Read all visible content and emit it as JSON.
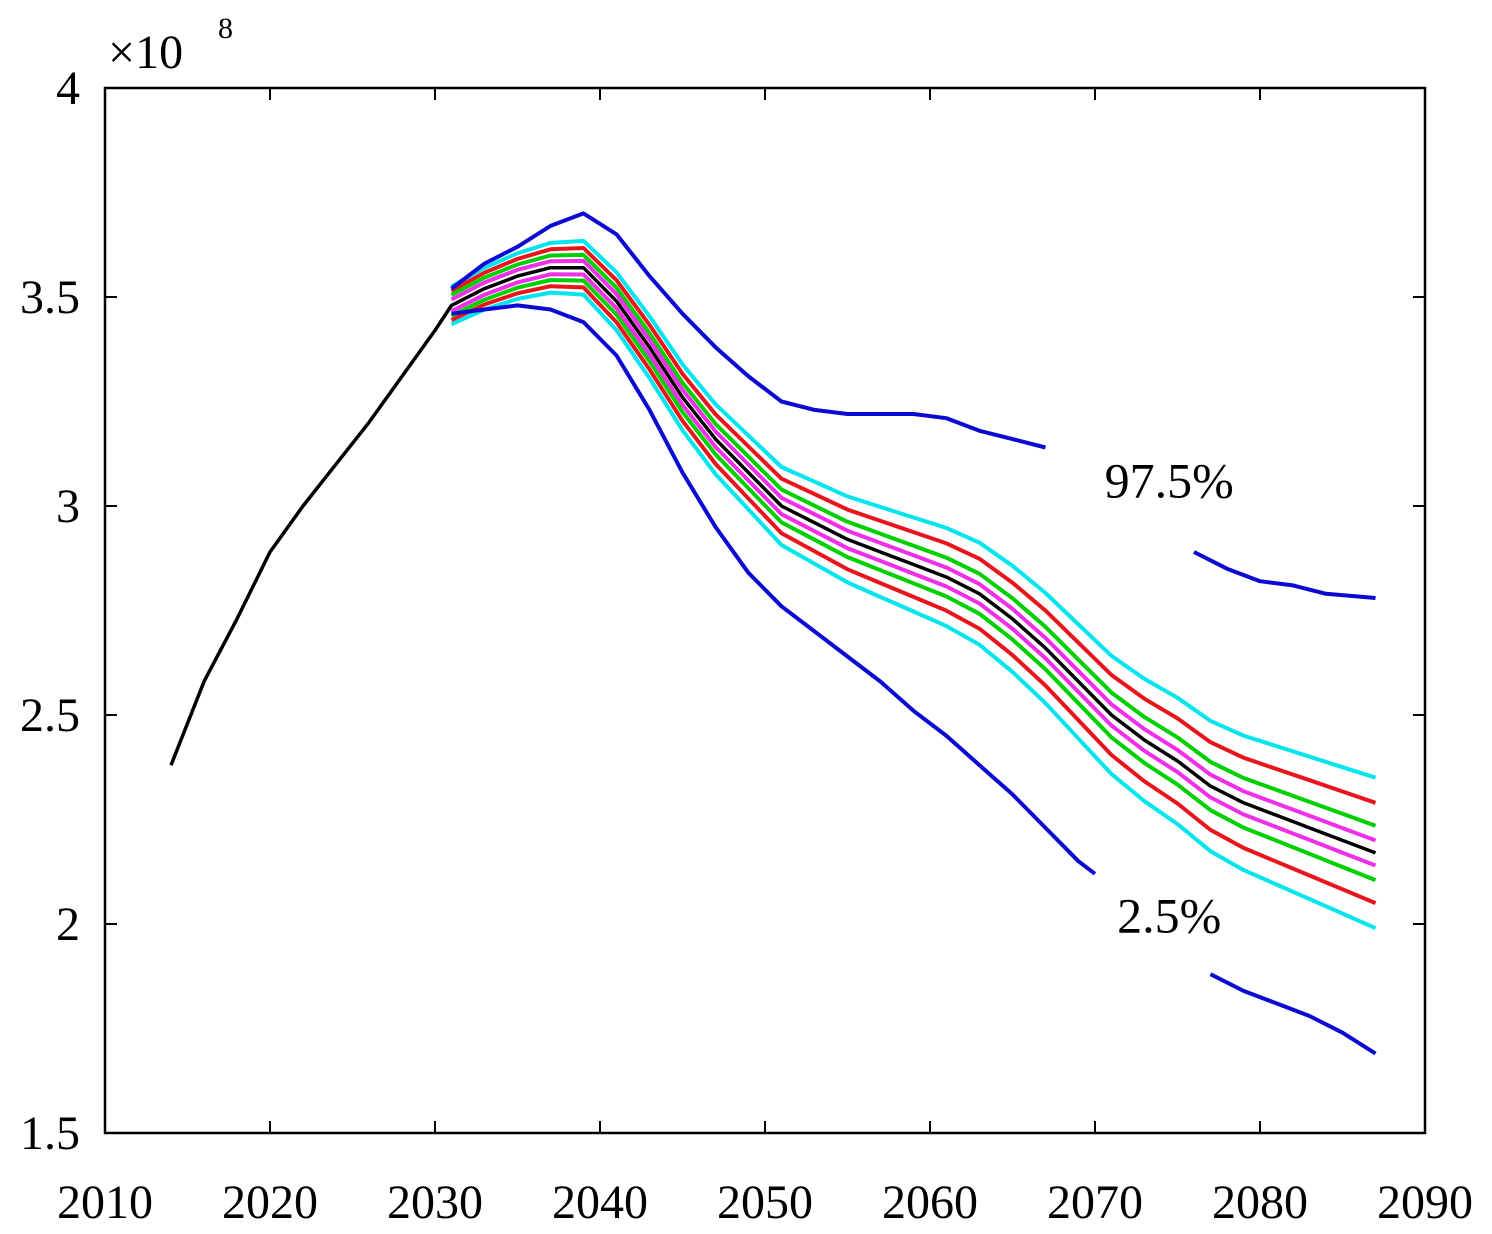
{
  "chart_data": {
    "type": "line",
    "title": "",
    "xlabel": "",
    "ylabel": "",
    "y_multiplier": {
      "base": "×10",
      "exponent": "8"
    },
    "xlim": [
      2010,
      2090
    ],
    "ylim": [
      1.5,
      4
    ],
    "x_ticks": [
      2010,
      2020,
      2030,
      2040,
      2050,
      2060,
      2070,
      2080,
      2090
    ],
    "x_tick_labels": [
      "2010",
      "2020",
      "2030",
      "2040",
      "2050",
      "2060",
      "2070",
      "2080",
      "2090"
    ],
    "y_ticks": [
      1.5,
      2,
      2.5,
      3,
      3.5,
      4
    ],
    "y_tick_labels": [
      "1.5",
      "2",
      "2.5",
      "3",
      "3.5",
      "4"
    ],
    "grid": false,
    "annotations": [
      {
        "text": "97.5%",
        "x": 2074.5,
        "y": 3.02
      },
      {
        "text": "2.5%",
        "x": 2074.5,
        "y": 1.98
      }
    ],
    "colors": {
      "outer": "#0a0ad2",
      "cyan": "#00e5ee",
      "red": "#e8161c",
      "green": "#00d000",
      "magenta": "#f030e8",
      "median": "#000000"
    },
    "series": [
      {
        "name": "97.5% upper",
        "color_key": "outer",
        "segments": [
          {
            "x": [
              2031,
              2033,
              2035,
              2037,
              2039,
              2041,
              2043,
              2045,
              2047,
              2049,
              2051,
              2053,
              2055,
              2057,
              2059,
              2061,
              2063,
              2065,
              2067
            ],
            "y": [
              3.52,
              3.58,
              3.62,
              3.67,
              3.7,
              3.65,
              3.55,
              3.46,
              3.38,
              3.31,
              3.25,
              3.23,
              3.22,
              3.22,
              3.22,
              3.21,
              3.18,
              3.16,
              3.14
            ]
          },
          {
            "x": [
              2076,
              2078,
              2080,
              2082,
              2084,
              2087
            ],
            "y": [
              2.89,
              2.85,
              2.82,
              2.81,
              2.79,
              2.78
            ]
          }
        ]
      },
      {
        "name": "2.5% lower",
        "color_key": "outer",
        "segments": [
          {
            "x": [
              2031,
              2033,
              2035,
              2037,
              2039,
              2041,
              2043,
              2045,
              2047,
              2049,
              2051,
              2053,
              2055,
              2057,
              2059,
              2061,
              2063,
              2065,
              2067,
              2069,
              2070
            ],
            "y": [
              3.46,
              3.47,
              3.48,
              3.47,
              3.44,
              3.36,
              3.23,
              3.08,
              2.95,
              2.84,
              2.76,
              2.7,
              2.64,
              2.58,
              2.51,
              2.45,
              2.38,
              2.31,
              2.23,
              2.15,
              2.12
            ]
          },
          {
            "x": [
              2077,
              2079,
              2081,
              2083,
              2085,
              2087
            ],
            "y": [
              1.88,
              1.84,
              1.81,
              1.78,
              1.74,
              1.69
            ]
          }
        ]
      },
      {
        "name": "median",
        "color_key": "median",
        "x": [
          2014,
          2016,
          2018,
          2020,
          2022,
          2024,
          2026,
          2028,
          2030,
          2031,
          2033,
          2035,
          2037,
          2039,
          2041,
          2043,
          2045,
          2047,
          2049,
          2051,
          2053,
          2055,
          2057,
          2059,
          2061,
          2063,
          2065,
          2067,
          2069,
          2071,
          2073,
          2075,
          2077,
          2079,
          2081,
          2083,
          2085,
          2087
        ],
        "y": [
          2.38,
          2.58,
          2.73,
          2.89,
          3.0,
          3.1,
          3.2,
          3.31,
          3.42,
          3.48,
          3.52,
          3.55,
          3.57,
          3.57,
          3.49,
          3.38,
          3.26,
          3.16,
          3.08,
          3.0,
          2.96,
          2.92,
          2.89,
          2.86,
          2.83,
          2.79,
          2.73,
          2.66,
          2.58,
          2.5,
          2.44,
          2.39,
          2.33,
          2.29,
          2.26,
          2.23,
          2.2,
          2.17
        ]
      },
      {
        "name": "upper band 1",
        "color_key": "magenta",
        "offset_start": 0.014,
        "offset_end": 0.03
      },
      {
        "name": "lower band 1",
        "color_key": "magenta",
        "offset_start": -0.014,
        "offset_end": -0.03
      },
      {
        "name": "upper band 2",
        "color_key": "green",
        "offset_start": 0.025,
        "offset_end": 0.065
      },
      {
        "name": "lower band 2",
        "color_key": "green",
        "offset_start": -0.025,
        "offset_end": -0.065
      },
      {
        "name": "upper band 3",
        "color_key": "red",
        "offset_start": 0.035,
        "offset_end": 0.12
      },
      {
        "name": "lower band 3",
        "color_key": "red",
        "offset_start": -0.035,
        "offset_end": -0.12
      },
      {
        "name": "upper band 4",
        "color_key": "cyan",
        "offset_start": 0.045,
        "offset_end": 0.18
      },
      {
        "name": "lower band 4",
        "color_key": "cyan",
        "offset_start": -0.045,
        "offset_end": -0.18
      }
    ]
  }
}
